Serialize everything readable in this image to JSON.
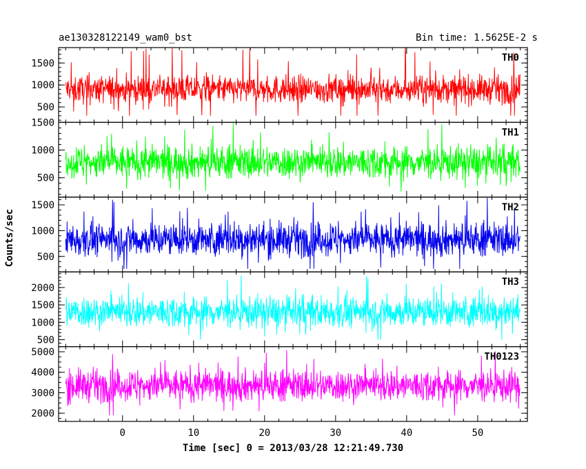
{
  "chart_data": {
    "type": "line",
    "title_left": "ae130328122149_wam0_bst",
    "title_right": "Bin time: 1.5625E-2 s",
    "xlabel": "Time [sec] 0 = 2013/03/28 12:21:49.730",
    "ylabel": "Counts/sec",
    "xlim": [
      -9,
      57
    ],
    "x_ticks": [
      0,
      10,
      20,
      30,
      40,
      50
    ],
    "data_x_range": [
      -8,
      56
    ],
    "bin_time_s": 0.015625,
    "panels": [
      {
        "name": "TH0",
        "color": "#ff0000",
        "ylim": [
          150,
          1850
        ],
        "y_ticks": [
          500,
          1000,
          1500
        ],
        "mean": 900,
        "min": 300,
        "max": 1850,
        "spread": 220
      },
      {
        "name": "TH1",
        "color": "#00ff00",
        "ylim": [
          150,
          1500
        ],
        "y_ticks": [
          500,
          1000,
          1500
        ],
        "mean": 780,
        "min": 250,
        "max": 1500,
        "spread": 210
      },
      {
        "name": "TH2",
        "color": "#0000ee",
        "ylim": [
          200,
          1650
        ],
        "y_ticks": [
          500,
          1000,
          1500
        ],
        "mean": 830,
        "min": 260,
        "max": 1650,
        "spread": 230
      },
      {
        "name": "TH3",
        "color": "#00ffff",
        "ylim": [
          300,
          2450
        ],
        "y_ticks": [
          500,
          1000,
          1500,
          2000
        ],
        "mean": 1300,
        "min": 500,
        "max": 2400,
        "spread": 320
      },
      {
        "name": "TH0123",
        "color": "#ff00ff",
        "ylim": [
          1600,
          5250
        ],
        "y_ticks": [
          2000,
          3000,
          4000,
          5000
        ],
        "mean": 3350,
        "min": 1900,
        "max": 5100,
        "spread": 550
      }
    ]
  }
}
